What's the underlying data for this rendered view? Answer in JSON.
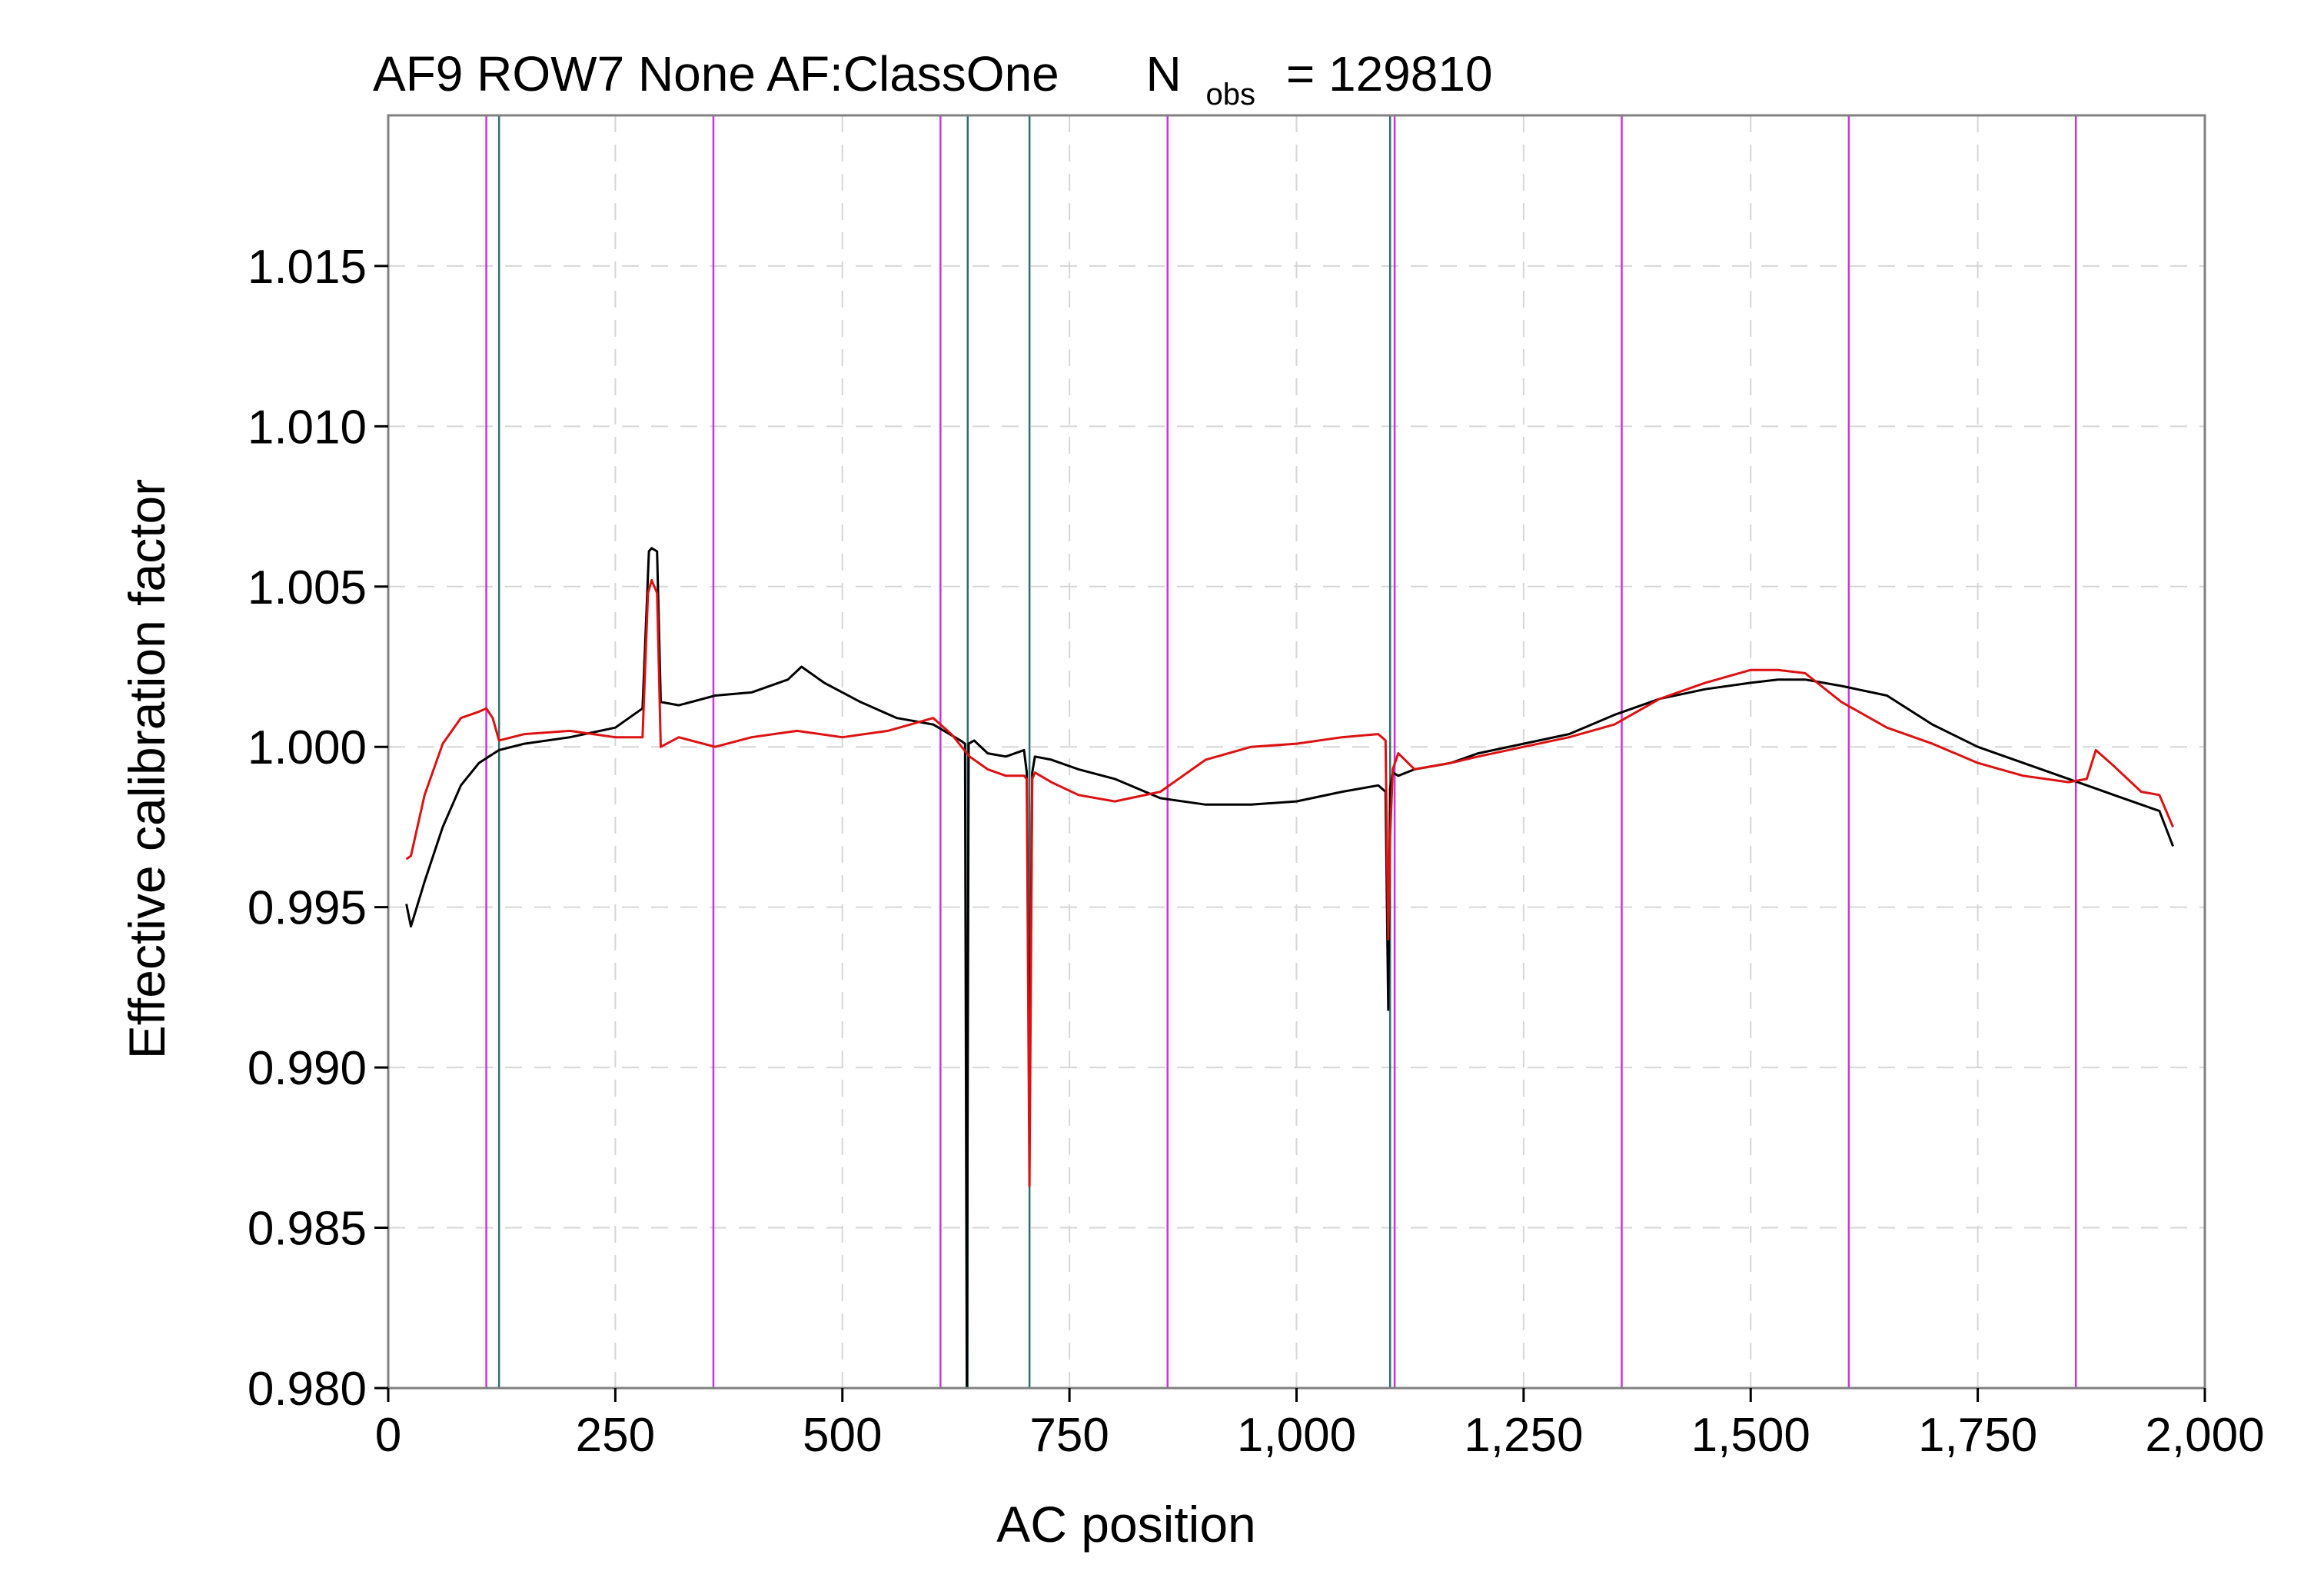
{
  "chart_data": {
    "type": "line",
    "title": {
      "main": "AF9 ROW7 None AF:ClassOne",
      "n_symbol": "N",
      "n_subscript": "obs",
      "n_equals": "= 129810"
    },
    "xlabel": "AC position",
    "ylabel": "Effective calibration factor",
    "xlim": [
      0,
      2000
    ],
    "ylim": [
      0.98,
      1.0197
    ],
    "x_ticks": [
      0,
      250,
      500,
      750,
      1000,
      1250,
      1500,
      1750,
      2000
    ],
    "x_tick_labels": [
      "0",
      "250",
      "500",
      "750",
      "1,000",
      "1,250",
      "1,500",
      "1,750",
      "2,000"
    ],
    "y_ticks": [
      0.98,
      0.985,
      0.99,
      0.995,
      1.0,
      1.005,
      1.01,
      1.015
    ],
    "y_tick_labels": [
      "0.980",
      "0.985",
      "0.990",
      "0.995",
      "1.000",
      "1.005",
      "1.010",
      "1.015"
    ],
    "grid": true,
    "legend": "none",
    "vertical_lines": {
      "magenta": {
        "color": "#cc33dd",
        "x": [
          108,
          358,
          608,
          858,
          1108,
          1358,
          1608,
          1858
        ]
      },
      "teal": {
        "color": "#2f6f6f",
        "x": [
          122,
          638,
          706,
          1103
        ]
      }
    },
    "series": [
      {
        "color": "#000000",
        "x": [
          20,
          25,
          40,
          60,
          80,
          100,
          122,
          150,
          200,
          250,
          280,
          287,
          290,
          296,
          300,
          320,
          360,
          400,
          440,
          455,
          480,
          520,
          560,
          600,
          630,
          635,
          637,
          639,
          645,
          660,
          680,
          700,
          703,
          706,
          709,
          712,
          730,
          760,
          800,
          850,
          900,
          950,
          1000,
          1050,
          1090,
          1098,
          1101,
          1103,
          1106,
          1112,
          1130,
          1170,
          1200,
          1250,
          1300,
          1350,
          1400,
          1450,
          1500,
          1530,
          1560,
          1600,
          1650,
          1700,
          1750,
          1800,
          1850,
          1880,
          1900,
          1930,
          1950,
          1965
        ],
        "y": [
          0.9951,
          0.9944,
          0.9958,
          0.9975,
          0.9988,
          0.9995,
          0.9999,
          1.0001,
          1.0003,
          1.0006,
          1.0012,
          1.0061,
          1.0062,
          1.0061,
          1.0014,
          1.0013,
          1.0016,
          1.0017,
          1.0021,
          1.0025,
          1.002,
          1.0014,
          1.0009,
          1.0007,
          1.0002,
          1.0001,
          0.98,
          1.0001,
          1.0002,
          0.9998,
          0.9997,
          0.9999,
          0.9992,
          0.9885,
          0.9992,
          0.9997,
          0.9996,
          0.9993,
          0.999,
          0.9984,
          0.9982,
          0.9982,
          0.9983,
          0.9986,
          0.9988,
          0.9986,
          0.9918,
          0.9987,
          0.9992,
          0.9991,
          0.9993,
          0.9995,
          0.9998,
          1.0001,
          1.0004,
          1.001,
          1.0015,
          1.0018,
          1.002,
          1.0021,
          1.0021,
          1.0019,
          1.0016,
          1.0007,
          1.0,
          0.9995,
          0.999,
          0.9987,
          0.9985,
          0.9982,
          0.998,
          0.9969
        ]
      },
      {
        "color": "#dd1111",
        "x": [
          20,
          25,
          40,
          60,
          80,
          100,
          108,
          115,
          122,
          150,
          200,
          250,
          280,
          286,
          290,
          296,
          300,
          320,
          360,
          400,
          450,
          500,
          550,
          600,
          620,
          640,
          660,
          680,
          700,
          703,
          706,
          709,
          712,
          730,
          760,
          800,
          850,
          900,
          950,
          1000,
          1050,
          1090,
          1098,
          1101,
          1103,
          1106,
          1112,
          1130,
          1170,
          1200,
          1250,
          1300,
          1350,
          1400,
          1450,
          1500,
          1530,
          1560,
          1600,
          1650,
          1700,
          1750,
          1800,
          1850,
          1870,
          1880,
          1900,
          1930,
          1950,
          1965
        ],
        "y": [
          0.9965,
          0.9966,
          0.9985,
          1.0001,
          1.0009,
          1.0011,
          1.0012,
          1.0009,
          1.0002,
          1.0004,
          1.0005,
          1.0003,
          1.0003,
          1.0048,
          1.0052,
          1.0048,
          1.0,
          1.0003,
          1.0,
          1.0003,
          1.0005,
          1.0003,
          1.0005,
          1.0009,
          1.0004,
          0.9997,
          0.9993,
          0.9991,
          0.9991,
          0.999,
          0.9863,
          0.999,
          0.9992,
          0.9989,
          0.9985,
          0.9983,
          0.9986,
          0.9996,
          1.0,
          1.0001,
          1.0003,
          1.0004,
          1.0002,
          0.994,
          0.9972,
          0.9993,
          0.9998,
          0.9993,
          0.9995,
          0.9997,
          1.0,
          1.0003,
          1.0007,
          1.0015,
          1.002,
          1.0024,
          1.0024,
          1.0023,
          1.0014,
          1.0006,
          1.0001,
          0.9995,
          0.9991,
          0.9989,
          0.999,
          0.9999,
          0.9994,
          0.9986,
          0.9985,
          0.9975
        ]
      }
    ]
  }
}
